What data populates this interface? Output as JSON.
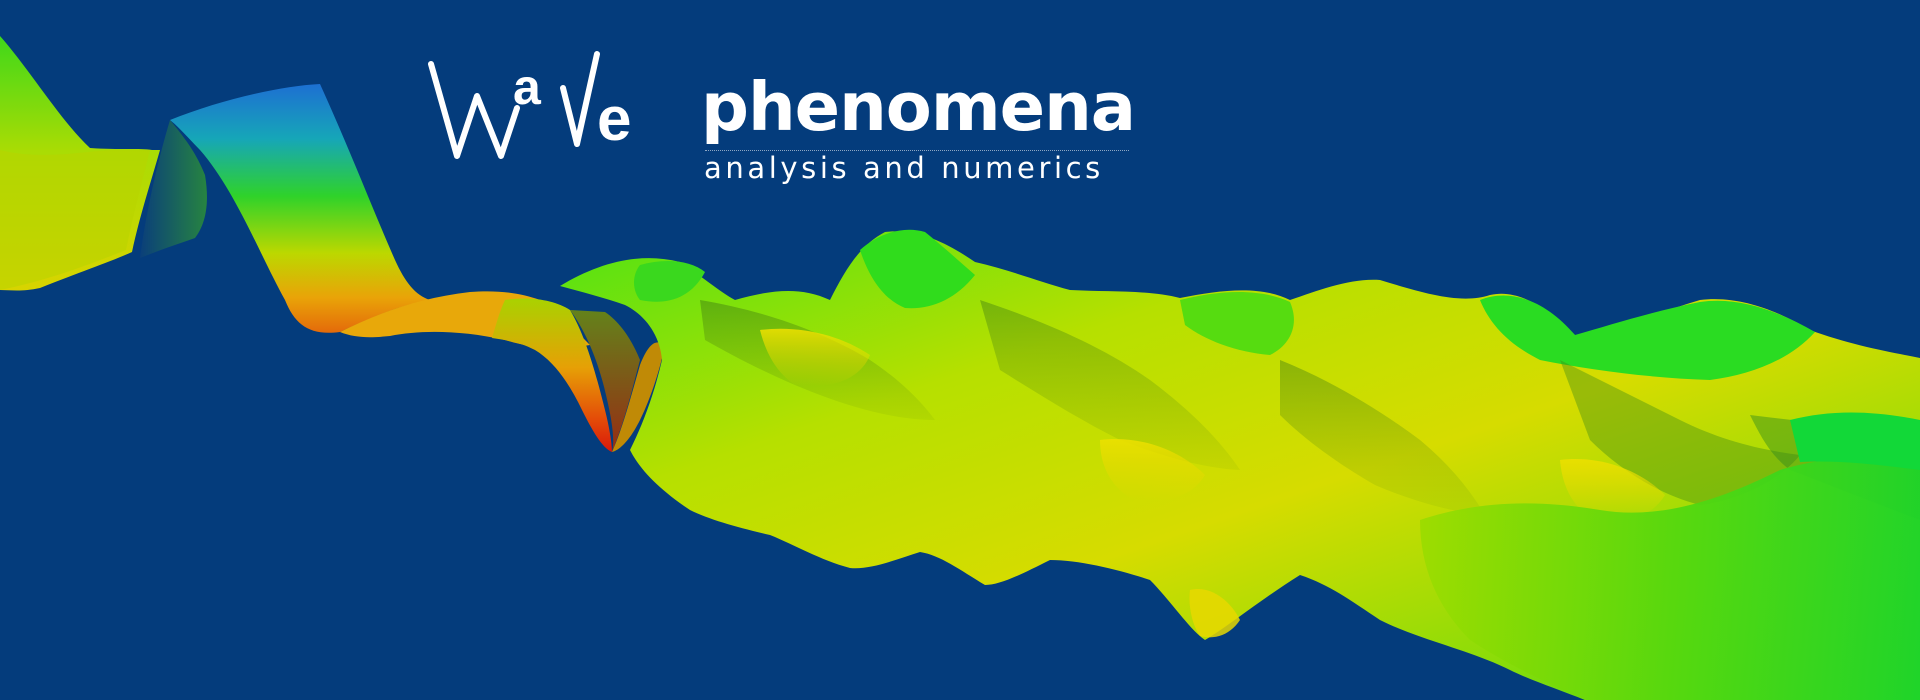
{
  "banner": {
    "background_color": "#043c7c",
    "logo": {
      "mark_letter_a": "a",
      "mark_letter_e": "e",
      "title": "phenomena",
      "subtitle": "analysis and numerics",
      "color": "#ffffff"
    },
    "surface_colors": {
      "blue": "#1f6fd0",
      "teal": "#19b2a0",
      "green": "#2bdc1e",
      "yellow_green": "#a6e000",
      "yellow": "#e6dc00",
      "orange": "#e8800a",
      "red": "#e02008"
    }
  }
}
